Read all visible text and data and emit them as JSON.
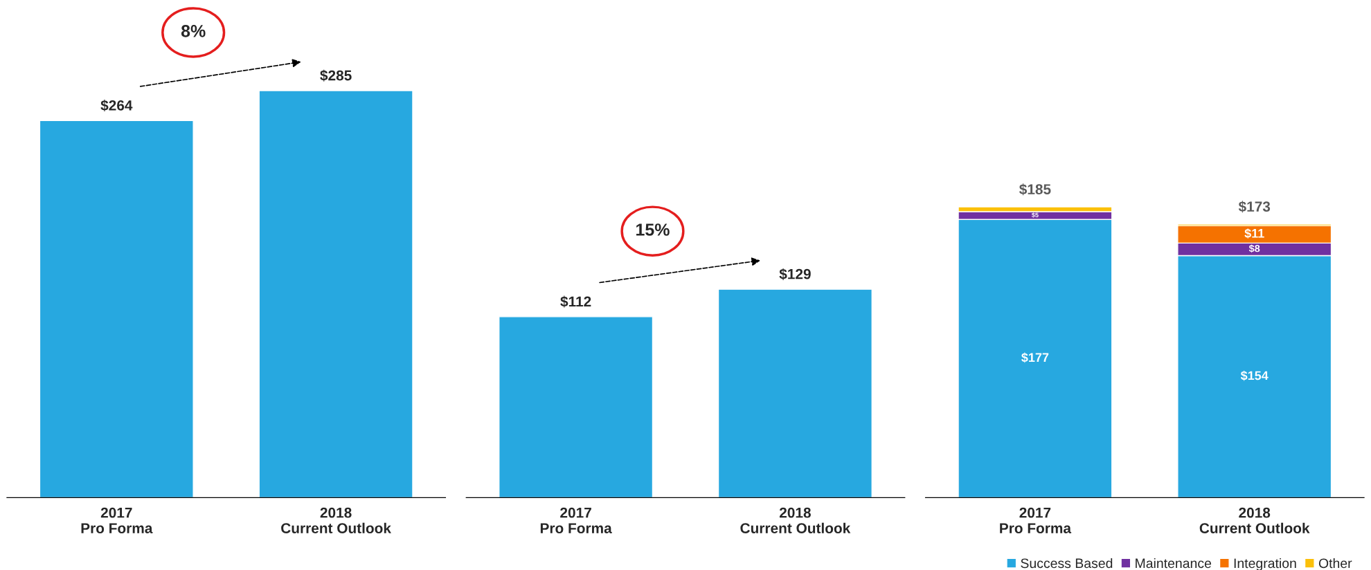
{
  "chart_data": [
    {
      "type": "bar",
      "categories": [
        "2017\nPro Forma",
        "2018\nCurrent Outlook"
      ],
      "values": [
        264,
        285
      ],
      "color": "#27a8e0",
      "value_labels": [
        "$264",
        "$285"
      ],
      "annotations": [
        "8%"
      ],
      "grid": false
    },
    {
      "type": "bar",
      "categories": [
        "2017\nPro Forma",
        "2018\nCurrent Outlook"
      ],
      "values": [
        112,
        129
      ],
      "color": "#27a8e0",
      "value_labels": [
        "$112",
        "$129"
      ],
      "annotations": [
        "15%"
      ],
      "grid": false
    },
    {
      "type": "bar",
      "categories": [
        "2017\nPro Forma",
        "2018\nCurrent Outlook"
      ],
      "stacked": true,
      "grid": false,
      "legend": "bottom right",
      "series": [
        {
          "name": "Success Based",
          "color": "#27a8e0",
          "values": [
            177,
            154
          ],
          "value_labels": [
            "$177",
            "$154"
          ]
        },
        {
          "name": "Maintenance",
          "color": "#7030a0",
          "values": [
            5,
            8
          ],
          "value_labels": [
            "$5",
            "$8"
          ]
        },
        {
          "name": "Integration",
          "color": "#f57200",
          "values": [
            0,
            11
          ],
          "value_labels": [
            null,
            "$11"
          ]
        },
        {
          "name": "Other",
          "color": "#fbc00a",
          "values": [
            3,
            1
          ],
          "value_labels": [
            null,
            null
          ]
        }
      ],
      "totals": [
        "$185",
        "$173"
      ]
    }
  ]
}
